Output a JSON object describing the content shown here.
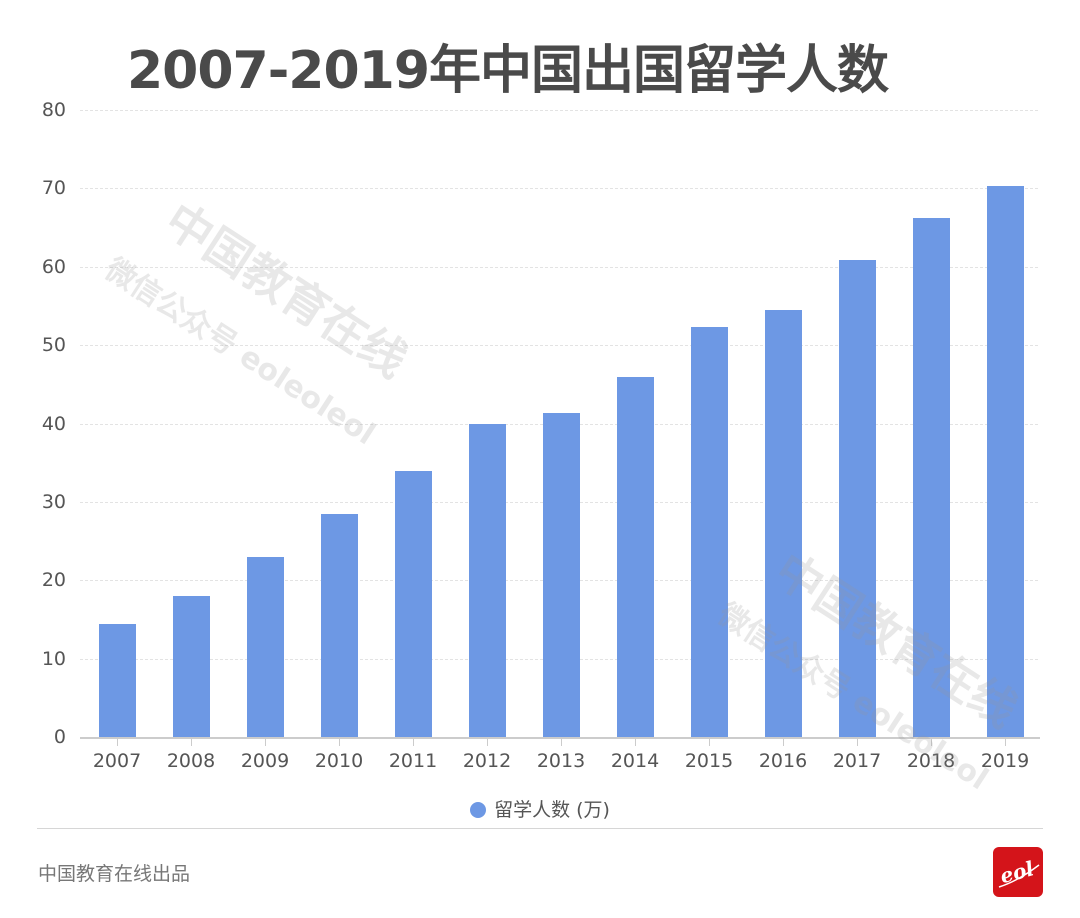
{
  "title": "2007-2019年中国出国留学人数",
  "chart_data": {
    "type": "bar",
    "title": "2007-2019年中国出国留学人数",
    "categories": [
      "2007",
      "2008",
      "2009",
      "2010",
      "2011",
      "2012",
      "2013",
      "2014",
      "2015",
      "2016",
      "2017",
      "2018",
      "2019"
    ],
    "series": [
      {
        "name": "留学人数 (万)",
        "color": "#6d98e4",
        "values": [
          14.4,
          17.98,
          22.93,
          28.47,
          33.97,
          39.96,
          41.39,
          45.98,
          52.37,
          54.45,
          60.84,
          66.21,
          70.35
        ]
      }
    ],
    "xlabel": "",
    "ylabel": "",
    "ylim": [
      0,
      80
    ],
    "yticks": [
      0,
      10,
      20,
      30,
      40,
      50,
      60,
      70,
      80
    ],
    "grid": true,
    "legend_position": "bottom-center"
  },
  "legend": {
    "label": "留学人数 (万)",
    "color": "#6d98e4"
  },
  "watermark": {
    "line1": "中国教育在线",
    "line2": "微信公众号 eoleoleol"
  },
  "footer": {
    "credit": "中国教育在线出品",
    "logo_text": "eol",
    "logo_color": "#d4141a"
  }
}
